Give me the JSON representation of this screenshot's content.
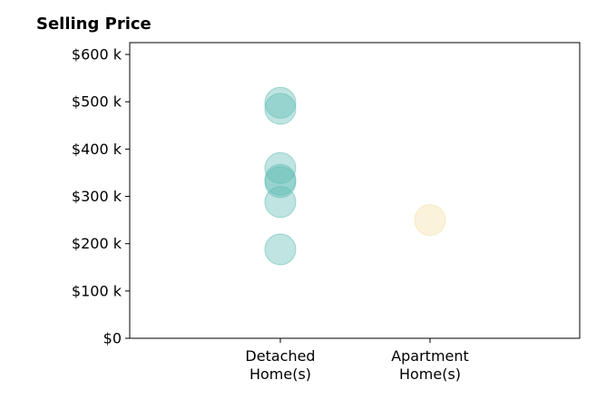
{
  "chart_data": {
    "type": "scatter",
    "title": "Selling Price",
    "xlabel": "",
    "ylabel": "",
    "categories": [
      "Detached\nHome(s)",
      "Apartment\nHome(s)"
    ],
    "ylim": [
      0,
      625000
    ],
    "yticks": [
      {
        "value": 0,
        "label": "$0"
      },
      {
        "value": 100000,
        "label": "$100 k"
      },
      {
        "value": 200000,
        "label": "$200 k"
      },
      {
        "value": 300000,
        "label": "$300 k"
      },
      {
        "value": 400000,
        "label": "$400 k"
      },
      {
        "value": 500000,
        "label": "$500 k"
      },
      {
        "value": 600000,
        "label": "$600 k"
      }
    ],
    "series": [
      {
        "category": "Detached\nHome(s)",
        "color": "#5fbcb4",
        "values": [
          498000,
          485000,
          360000,
          335000,
          330000,
          288000,
          188000
        ]
      },
      {
        "category": "Apartment\nHome(s)",
        "color": "#f5dea6",
        "values": [
          250000
        ]
      }
    ],
    "grid": false,
    "legend": "none"
  },
  "colors": {
    "detached": "#5fbcb4",
    "apartment": "#f5dea6"
  }
}
